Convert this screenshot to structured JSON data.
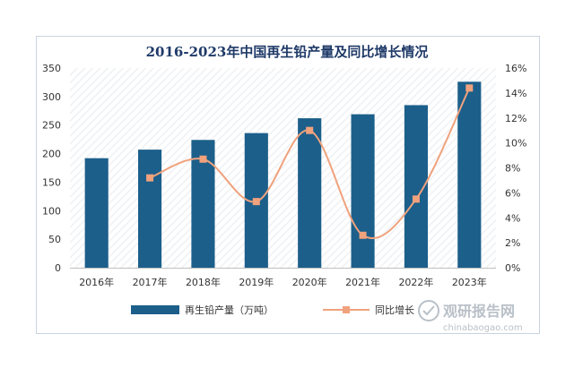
{
  "chart_data": {
    "type": "bar+line",
    "title": "2016-2023年中国再生铅产量及同比增长情况",
    "categories": [
      "2016年",
      "2017年",
      "2018年",
      "2019年",
      "2020年",
      "2021年",
      "2022年",
      "2023年"
    ],
    "series": [
      {
        "name": "再生铅产量（万吨）",
        "type": "bar",
        "axis": "left",
        "color": "#1c5f8a",
        "values": [
          192,
          207,
          224,
          236,
          262,
          269,
          285,
          326
        ]
      },
      {
        "name": "同比增长",
        "type": "line",
        "axis": "right",
        "color": "#f0a27d",
        "values": [
          null,
          7.2,
          8.7,
          5.3,
          11.0,
          2.6,
          5.5,
          14.4
        ]
      }
    ],
    "y_left": {
      "ylim": [
        0,
        350
      ],
      "ticks": [
        "0",
        "50",
        "100",
        "150",
        "200",
        "250",
        "300",
        "350"
      ]
    },
    "y_right": {
      "ylim": [
        0,
        16
      ],
      "ticks": [
        "0%",
        "2%",
        "4%",
        "6%",
        "8%",
        "10%",
        "12%",
        "14%",
        "16%"
      ]
    },
    "legend_position": "bottom",
    "grid": false
  },
  "watermark": {
    "main": "观研报告网",
    "sub": "chinabaogao.com"
  }
}
